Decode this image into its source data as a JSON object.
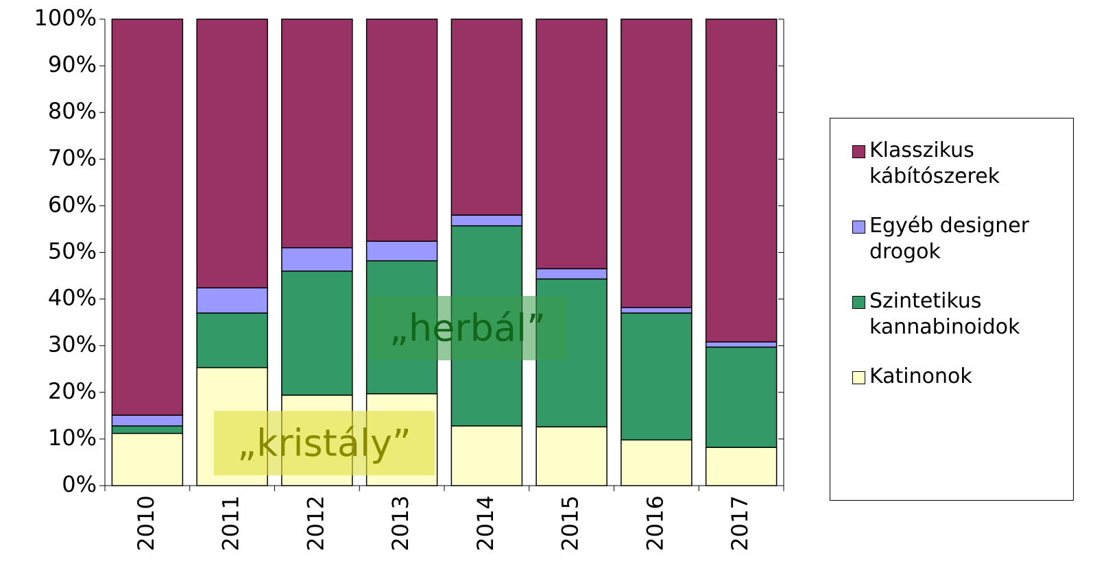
{
  "chart_data": {
    "type": "stacked_bar",
    "categories": [
      "2010",
      "2011",
      "2012",
      "2013",
      "2014",
      "2015",
      "2016",
      "2017"
    ],
    "series": [
      {
        "name": "Katinonok",
        "color": "#ffffcc",
        "values": [
          11.2,
          25.3,
          19.4,
          19.7,
          12.8,
          12.6,
          9.8,
          8.2
        ]
      },
      {
        "name": "Szintetikus kannabinoidok",
        "color": "#339966",
        "values": [
          1.6,
          11.7,
          26.6,
          28.5,
          42.9,
          31.7,
          27.2,
          21.5
        ]
      },
      {
        "name": "Egyéb designer drogok",
        "color": "#9999ff",
        "values": [
          2.3,
          5.4,
          5.0,
          4.2,
          2.3,
          2.2,
          1.2,
          1.1
        ]
      },
      {
        "name": "Klasszikus kábítószerek",
        "color": "#993366",
        "values": [
          84.9,
          57.6,
          49.0,
          47.6,
          42.0,
          53.5,
          61.8,
          69.2
        ]
      }
    ],
    "ylim": [
      0,
      100
    ],
    "yticks": [
      {
        "value": 0,
        "label": "0%"
      },
      {
        "value": 10,
        "label": "10%"
      },
      {
        "value": 20,
        "label": "20%"
      },
      {
        "value": 30,
        "label": "30%"
      },
      {
        "value": 40,
        "label": "40%"
      },
      {
        "value": 50,
        "label": "50%"
      },
      {
        "value": 60,
        "label": "60%"
      },
      {
        "value": 70,
        "label": "70%"
      },
      {
        "value": 80,
        "label": "80%"
      },
      {
        "value": 90,
        "label": "90%"
      },
      {
        "value": 100,
        "label": "100%"
      }
    ],
    "grid": false,
    "legend": "right",
    "annotations": [
      "„kristály”",
      "„herbál”"
    ]
  }
}
